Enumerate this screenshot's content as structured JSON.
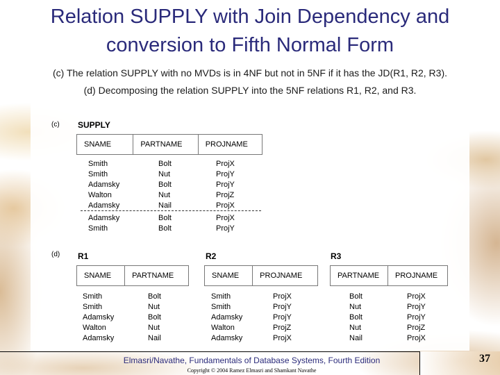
{
  "title": "Relation SUPPLY with Join Dependency and conversion to Fifth Normal Form",
  "subtitle_c": "(c) The relation SUPPLY with no MVDs is in 4NF but not in 5NF if it has the JD(R1, R2, R3).",
  "subtitle_d": "(d) Decomposing the relation SUPPLY into the 5NF relations R1, R2, and R3.",
  "figure_c": {
    "label": "(c)",
    "relation_name": "SUPPLY",
    "headers": [
      "SNAME",
      "PARTNAME",
      "PROJNAME"
    ],
    "sname": [
      "Smith",
      "Smith",
      "Adamsky",
      "Walton",
      "Adamsky",
      "Adamsky",
      "Smith"
    ],
    "partname": [
      "Bolt",
      "Nut",
      "Bolt",
      "Nut",
      "Nail",
      "Bolt",
      "Bolt"
    ],
    "projname": [
      "ProjX",
      "ProjY",
      "ProjY",
      "ProjZ",
      "ProjX",
      "ProjX",
      "ProjY"
    ]
  },
  "figure_d": {
    "label": "(d)",
    "r1": {
      "name": "R1",
      "headers": [
        "SNAME",
        "PARTNAME"
      ],
      "col1": [
        "Smith",
        "Smith",
        "Adamsky",
        "Walton",
        "Adamsky"
      ],
      "col2": [
        "Bolt",
        "Nut",
        "Bolt",
        "Nut",
        "Nail"
      ]
    },
    "r2": {
      "name": "R2",
      "headers": [
        "SNAME",
        "PROJNAME"
      ],
      "col1": [
        "Smith",
        "Smith",
        "Adamsky",
        "Walton",
        "Adamsky"
      ],
      "col2": [
        "ProjX",
        "ProjY",
        "ProjY",
        "ProjZ",
        "ProjX"
      ]
    },
    "r3": {
      "name": "R3",
      "headers": [
        "PARTNAME",
        "PROJNAME"
      ],
      "col1": [
        "Bolt",
        "Nut",
        "Bolt",
        "Nut",
        "Nail"
      ],
      "col2": [
        "ProjX",
        "ProjY",
        "ProjY",
        "ProjZ",
        "ProjX"
      ]
    }
  },
  "footer": {
    "text": "Elmasri/Navathe, Fundamentals of Database Systems, Fourth Edition",
    "copyright": "Copyright © 2004 Ramez Elmasri and Shamkant Navathe",
    "page_number": "37"
  }
}
